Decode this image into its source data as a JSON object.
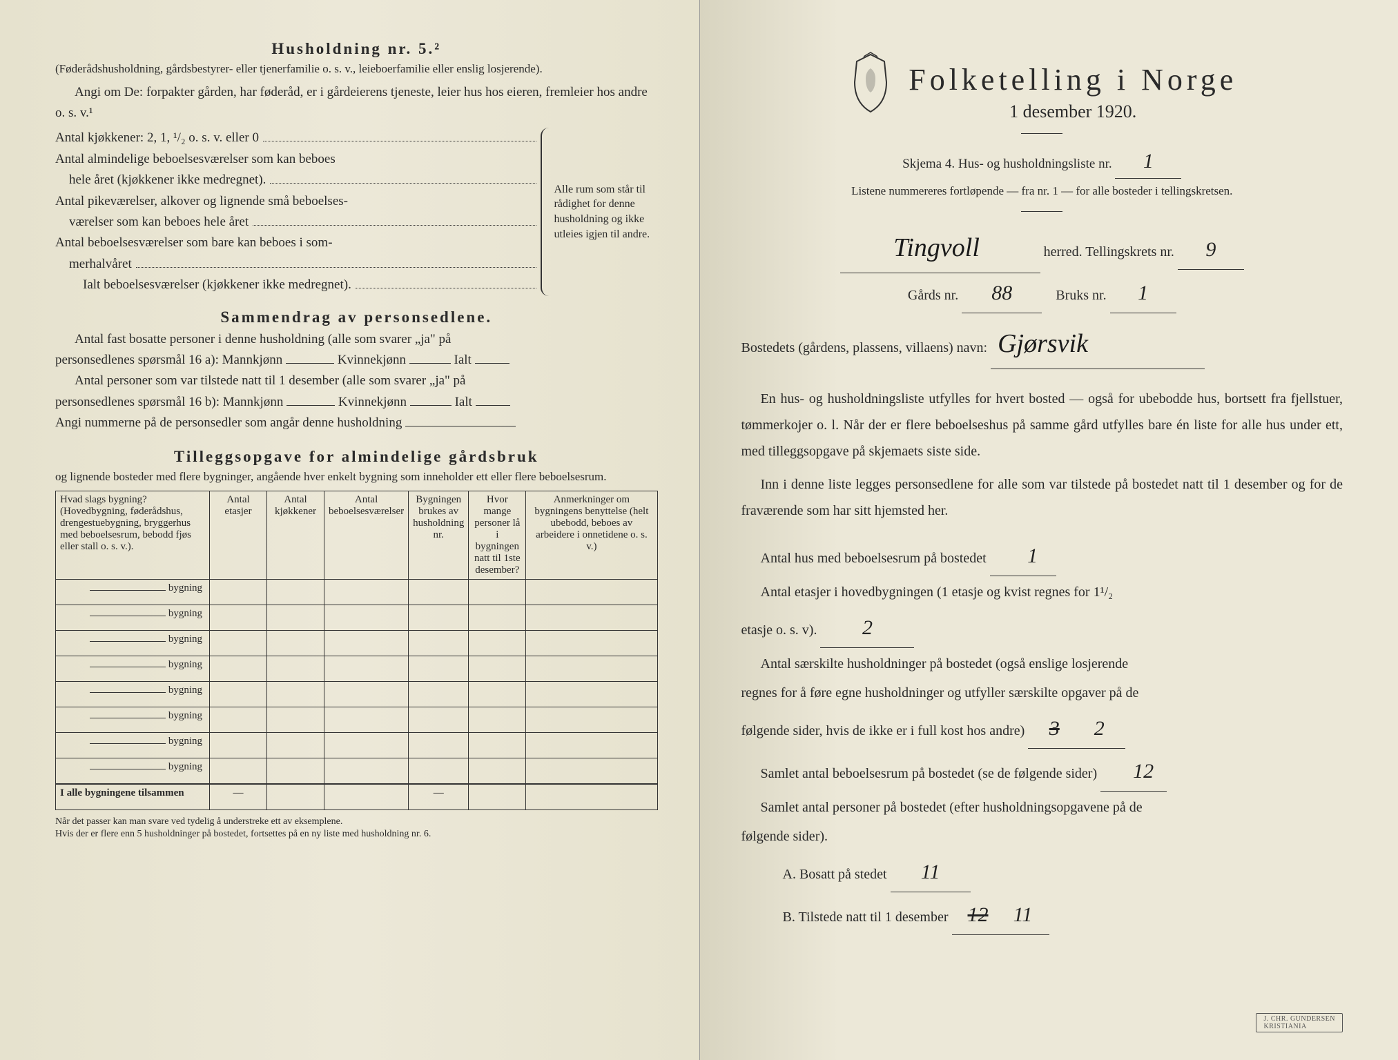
{
  "colors": {
    "paper": "#ece8d8",
    "ink": "#2a2a2a",
    "hand": "#1a1a1a"
  },
  "typography": {
    "body_pt": 19,
    "title_pt": 44,
    "small_pt": 17,
    "hand_family": "cursive"
  },
  "left": {
    "heading": "Husholdning nr. 5.²",
    "para1": "(Føderådshusholdning, gårdsbestyrer- eller tjenerfamilie o. s. v., leieboerfamilie eller enslig losjerende).",
    "para2": "Angi om De: forpakter gården, har føderåd, er i gårdeierens tjeneste, leier hus hos eieren, fremleier hos andre o. s. v.¹",
    "counts": {
      "l1": "Antal kjøkkener: 2, 1, ¹/₂ o. s. v. eller 0",
      "l2a": "Antal almindelige beboelsesværelser som kan beboes",
      "l2b": "hele året (kjøkkener ikke medregnet).",
      "l3a": "Antal pikeværelser, alkover og lignende små beboelses-",
      "l3b": "værelser som kan beboes hele året",
      "l4a": "Antal beboelsesværelser som bare kan beboes i som-",
      "l4b": "merhalvåret",
      "l5": "Ialt beboelsesværelser (kjøkkener ikke medregnet).",
      "side": "Alle rum som står til rådighet for denne husholdning og ikke utleies igjen til andre."
    },
    "sammendrag": {
      "heading": "Sammendrag av personsedlene.",
      "p1a": "Antal fast bosatte personer i denne husholdning (alle som svarer „ja\" på",
      "p1b": "personsedlenes spørsmål 16 a): Mannkjønn",
      "kv": "Kvinnekjønn",
      "ialt": "Ialt",
      "p2a": "Antal personer som var tilstede natt til 1 desember (alle som svarer „ja\" på",
      "p2b": "personsedlenes spørsmål 16 b): Mannkjønn",
      "p3": "Angi nummerne på de personsedler som angår denne husholdning"
    },
    "tillegg": {
      "heading": "Tilleggsopgave for almindelige gårdsbruk",
      "sub": "og lignende bosteder med flere bygninger, angående hver enkelt bygning som inneholder ett eller flere beboelsesrum.",
      "cols": [
        "Hvad slags bygning?\n(Hovedbygning, føderådshus, drengestuebygning, bryggerhus med beboelsesrum, bebodd fjøs eller stall o. s. v.).",
        "Antal etasjer",
        "Antal kjøkkener",
        "Antal beboelsesværelser",
        "Bygningen brukes av husholdning nr.",
        "Hvor mange personer lå i bygningen natt til 1ste desember?",
        "Anmerkninger om bygningens benyttelse (helt ubebodd, beboes av arbeidere i onnetidene o. s. v.)"
      ],
      "rowlabel": "bygning",
      "row_count": 8,
      "totals": "I alle bygningene tilsammen",
      "footnote": "Når det passer kan man svare ved tydelig å understreke ett av eksemplene.\nHvis der er flere enn 5 husholdninger på bostedet, fortsettes på en ny liste med husholdning nr. 6."
    }
  },
  "right": {
    "title": "Folketelling i Norge",
    "date": "1 desember 1920.",
    "skjema_label": "Skjema 4.  Hus- og husholdningsliste nr.",
    "skjema_value": "1",
    "note": "Listene nummereres fortløpende — fra nr. 1 — for alle bosteder i tellingskretsen.",
    "herred_value": "Tingvoll",
    "herred_label": "herred.   Tellingskrets nr.",
    "krets_value": "9",
    "gards_label": "Gårds nr.",
    "gards_value": "88",
    "bruks_label": "Bruks nr.",
    "bruks_value": "1",
    "bosted_label": "Bostedets (gårdens, plassens, villaens) navn:",
    "bosted_value": "Gjørsvik",
    "para1": "En hus- og husholdningsliste utfylles for hvert bosted — også for ubebodde hus, bortsett fra fjellstuer, tømmerkojer o. l.  Når der er flere beboelseshus på samme gård utfylles bare én liste for alle hus under ett, med tilleggsopgave på skjemaets siste side.",
    "para2": "Inn i denne liste legges personsedlene for alle som var tilstede på bostedet natt til 1 desember og for de fraværende som har sitt hjemsted her.",
    "q1_label": "Antal hus med beboelsesrum på bostedet",
    "q1_value": "1",
    "q2_label_a": "Antal etasjer i hovedbygningen (1 etasje og kvist regnes for 1¹/₂",
    "q2_label_b": "etasje o. s. v).",
    "q2_value": "2",
    "q3_label_a": "Antal særskilte husholdninger på bostedet (også enslige losjerende",
    "q3_label_b": "regnes for å føre egne husholdninger og utfyller særskilte opgaver på de",
    "q3_label_c": "følgende sider, hvis de ikke er i full kost hos andre)",
    "q3_value_struck": "3",
    "q3_value": "2",
    "q4_label": "Samlet antal beboelsesrum på bostedet (se de følgende sider)",
    "q4_value": "12",
    "q5_label_a": "Samlet antal personer på bostedet (efter husholdningsopgavene på de",
    "q5_label_b": "følgende sider).",
    "q5a_label": "A.  Bosatt på stedet",
    "q5a_value": "11",
    "q5b_label": "B.  Tilstede natt til 1 desember",
    "q5b_value_struck": "12",
    "q5b_value": "11",
    "stamp": "J. CHR. GUNDERSEN\nKRISTIANIA"
  }
}
